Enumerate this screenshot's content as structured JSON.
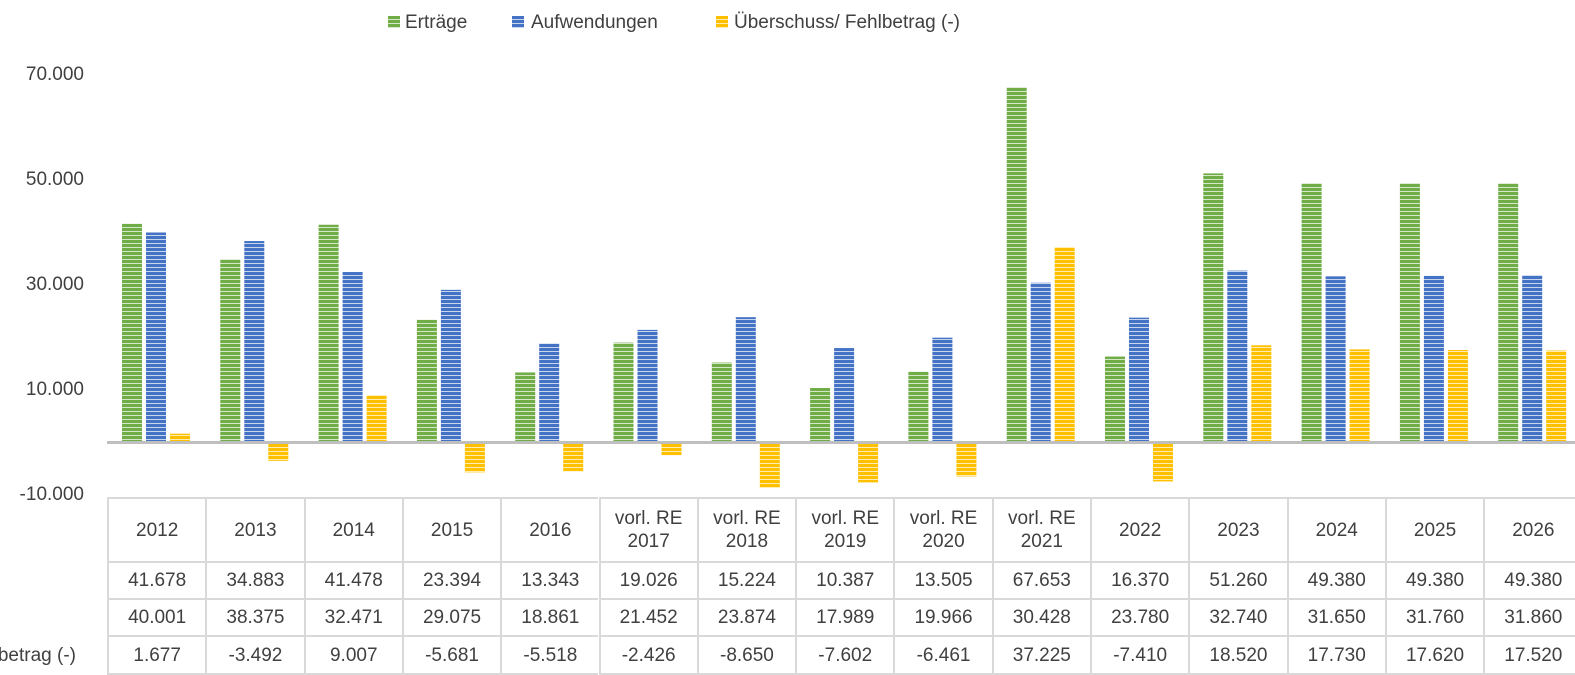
{
  "chart_data": {
    "type": "bar",
    "categories": [
      "2012",
      "2013",
      "2014",
      "2015",
      "2016",
      "vorl. RE 2017",
      "vorl. RE 2018",
      "vorl. RE 2019",
      "vorl. RE 2020",
      "vorl. RE 2021",
      "2022",
      "2023",
      "2024",
      "2025",
      "2026"
    ],
    "series": [
      {
        "name": "Erträge",
        "color": "#70ad47",
        "values": [
          41678,
          34883,
          41478,
          23394,
          13343,
          19026,
          15224,
          10387,
          13505,
          67653,
          16370,
          51260,
          49380,
          49380,
          49380
        ],
        "value_labels": [
          "41.678",
          "34.883",
          "41.478",
          "23.394",
          "13.343",
          "19.026",
          "15.224",
          "10.387",
          "13.505",
          "67.653",
          "16.370",
          "51.260",
          "49.380",
          "49.380",
          "49.380"
        ]
      },
      {
        "name": "Aufwendungen",
        "color": "#4472c4",
        "values": [
          40001,
          38375,
          32471,
          29075,
          18861,
          21452,
          23874,
          17989,
          19966,
          30428,
          23780,
          32740,
          31650,
          31760,
          31860
        ],
        "value_labels": [
          "40.001",
          "38.375",
          "32.471",
          "29.075",
          "18.861",
          "21.452",
          "23.874",
          "17.989",
          "19.966",
          "30.428",
          "23.780",
          "32.740",
          "31.650",
          "31.760",
          "31.860"
        ]
      },
      {
        "name": "Überschuss/ Fehlbetrag (-)",
        "color": "#ffc000",
        "values": [
          1677,
          -3492,
          9007,
          -5681,
          -5518,
          -2426,
          -8650,
          -7602,
          -6461,
          37225,
          -7410,
          18520,
          17730,
          17620,
          17520
        ],
        "value_labels": [
          "1.677",
          "-3.492",
          "9.007",
          "-5.681",
          "-5.518",
          "-2.426",
          "-8.650",
          "-7.602",
          "-6.461",
          "37.225",
          "-7.410",
          "18.520",
          "17.730",
          "17.620",
          "17.520"
        ]
      }
    ],
    "ylim": [
      -10000,
      70000
    ],
    "yticks": [
      {
        "value": -10000,
        "label": "-10.000"
      },
      {
        "value": 10000,
        "label": "10.000"
      },
      {
        "value": 30000,
        "label": "30.000"
      },
      {
        "value": 50000,
        "label": "50.000"
      },
      {
        "value": 70000,
        "label": "70.000"
      }
    ],
    "grid": false,
    "legend": "top"
  }
}
